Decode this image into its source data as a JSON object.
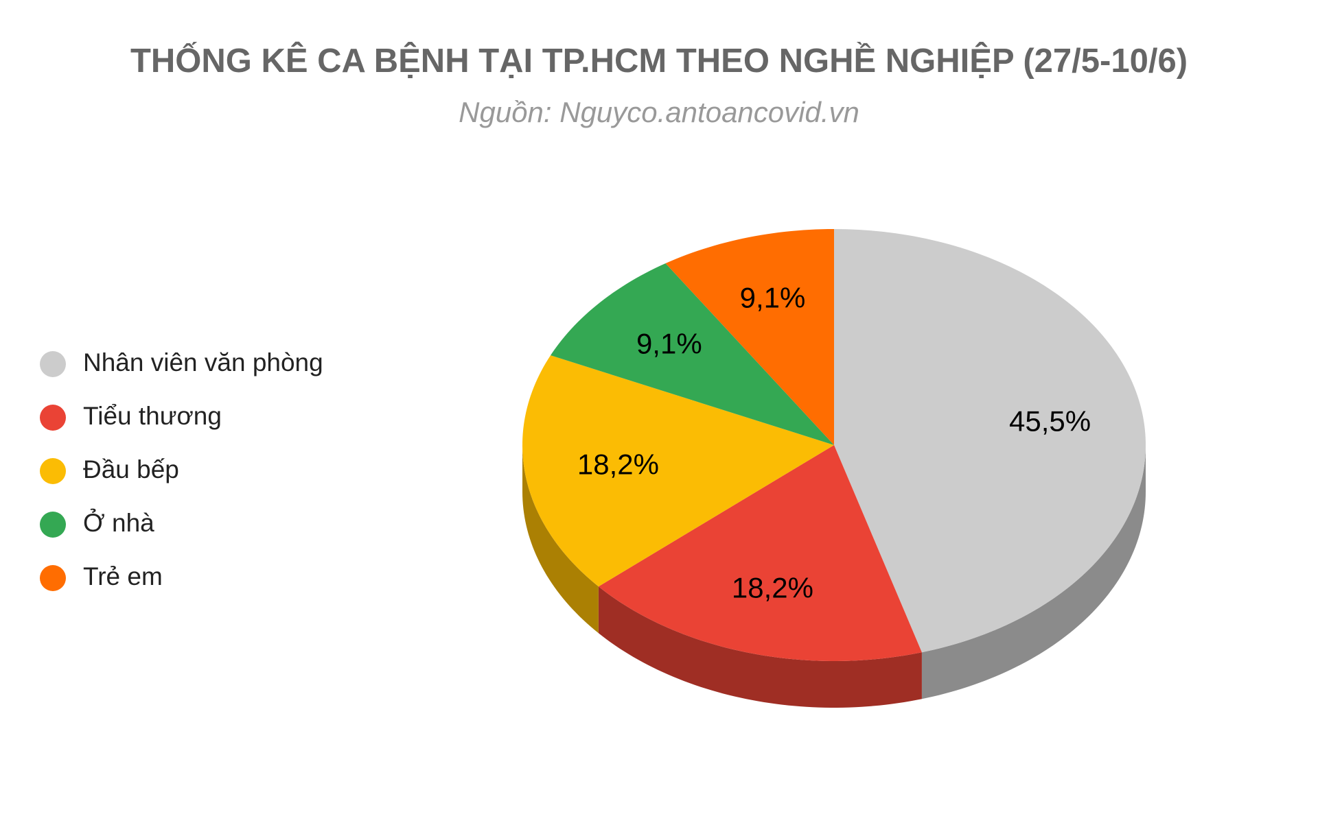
{
  "chart_data": {
    "type": "pie",
    "title": "THỐNG KÊ CA BỆNH TẠI TP.HCM THEO NGHỀ NGHIỆP (27/5-10/6)",
    "subtitle": "Nguồn: Nguyco.antoancovid.vn",
    "categories": [
      "Nhân viên văn phòng",
      "Tiểu thương",
      "Đầu bếp",
      "Ở nhà",
      "Trẻ em"
    ],
    "values": [
      45.5,
      18.2,
      18.2,
      9.1,
      9.1
    ],
    "value_labels": [
      "45,5%",
      "18,2%",
      "18,2%",
      "9,1%",
      "9,1%"
    ],
    "colors": [
      "#cccccc",
      "#ea4335",
      "#fbbc04",
      "#34a853",
      "#ff6d01"
    ],
    "legend": "left",
    "three_d": true
  }
}
